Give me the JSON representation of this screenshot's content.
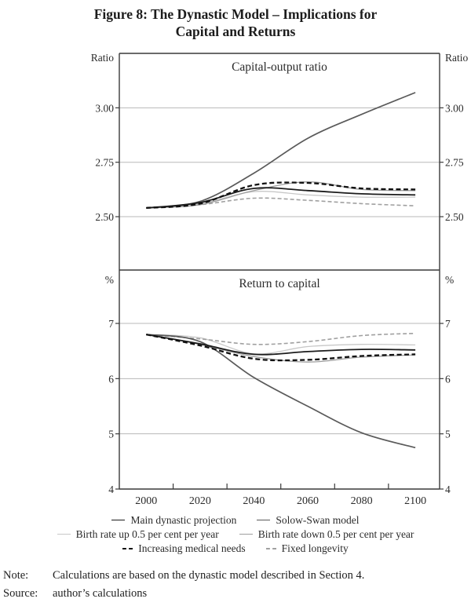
{
  "figure": {
    "title_line1": "Figure 8: The Dynastic Model – Implications for",
    "title_line2": "Capital and Returns"
  },
  "colors": {
    "frame": "#3a3a3a",
    "gridline": "#b8b8b8",
    "text": "#2b2b2b"
  },
  "chart_data": [
    {
      "type": "line",
      "panel": "top",
      "title": "Capital-output ratio",
      "unit_left": "Ratio",
      "unit_right": "Ratio",
      "x": [
        2000,
        2020,
        2040,
        2060,
        2080,
        2100
      ],
      "xlim": [
        1990,
        2109
      ],
      "ylim": [
        2.255,
        3.25
      ],
      "grid": true,
      "yticks": [
        {
          "v": 2.5,
          "label": "2.50"
        },
        {
          "v": 2.75,
          "label": "2.75"
        },
        {
          "v": 3.0,
          "label": "3.00"
        }
      ],
      "series": [
        {
          "id": "birth_up",
          "name": "Birth rate up 0.5 per cent per year",
          "color": "#c8c8c8",
          "width": 1.3,
          "dash": null,
          "values": [
            2.54,
            2.56,
            2.615,
            2.6,
            2.59,
            2.59
          ]
        },
        {
          "id": "birth_down",
          "name": "Birth rate down 0.5 per cent per year",
          "color": "#9e9e9e",
          "width": 1.3,
          "dash": null,
          "values": [
            2.54,
            2.555,
            2.62,
            2.66,
            2.625,
            2.62
          ]
        },
        {
          "id": "fixed_long",
          "name": "Fixed longevity",
          "color": "#a0a0a0",
          "width": 1.6,
          "dash": "5 3",
          "values": [
            2.54,
            2.555,
            2.585,
            2.575,
            2.56,
            2.55
          ]
        },
        {
          "id": "solow",
          "name": "Solow-Swan model",
          "color": "#5a5a5a",
          "width": 1.7,
          "dash": null,
          "values": [
            2.54,
            2.57,
            2.7,
            2.86,
            2.97,
            3.07
          ]
        },
        {
          "id": "main",
          "name": "Main dynastic projection",
          "color": "#1c1c1c",
          "width": 1.8,
          "dash": null,
          "values": [
            2.54,
            2.565,
            2.63,
            2.62,
            2.605,
            2.6
          ]
        },
        {
          "id": "inc_med",
          "name": "Increasing medical needs",
          "color": "#111111",
          "width": 2.3,
          "dash": "6 3.5",
          "values": [
            2.54,
            2.56,
            2.645,
            2.655,
            2.63,
            2.625
          ]
        }
      ]
    },
    {
      "type": "line",
      "panel": "bottom",
      "title": "Return to capital",
      "unit_left": "%",
      "unit_right": "%",
      "x": [
        2000,
        2020,
        2040,
        2060,
        2080,
        2100
      ],
      "x_tick_labels": [
        "2000",
        "2020",
        "2040",
        "2060",
        "2080",
        "2100"
      ],
      "x_minor_ticks": [
        2010,
        2030,
        2050,
        2070,
        2090
      ],
      "xlim": [
        1990,
        2109
      ],
      "ylim": [
        4,
        7.967
      ],
      "grid": true,
      "yticks": [
        {
          "v": 4,
          "label": "4"
        },
        {
          "v": 5,
          "label": "5"
        },
        {
          "v": 6,
          "label": "6"
        },
        {
          "v": 7,
          "label": "7"
        }
      ],
      "series": [
        {
          "id": "birth_up",
          "name": "Birth rate up 0.5 per cent per year",
          "color": "#c8c8c8",
          "width": 1.3,
          "dash": null,
          "values": [
            6.8,
            6.74,
            6.45,
            6.58,
            6.62,
            6.61
          ]
        },
        {
          "id": "birth_down",
          "name": "Birth rate down 0.5 per cent per year",
          "color": "#9e9e9e",
          "width": 1.3,
          "dash": null,
          "values": [
            6.8,
            6.62,
            6.4,
            6.3,
            6.39,
            6.43
          ]
        },
        {
          "id": "fixed_long",
          "name": "Fixed longevity",
          "color": "#a0a0a0",
          "width": 1.6,
          "dash": "5 3",
          "values": [
            6.8,
            6.72,
            6.62,
            6.67,
            6.78,
            6.82
          ]
        },
        {
          "id": "solow",
          "name": "Solow-Swan model",
          "color": "#5a5a5a",
          "width": 1.7,
          "dash": null,
          "values": [
            6.8,
            6.67,
            6.02,
            5.5,
            5.02,
            4.75
          ]
        },
        {
          "id": "main",
          "name": "Main dynastic projection",
          "color": "#1c1c1c",
          "width": 1.8,
          "dash": null,
          "values": [
            6.8,
            6.63,
            6.44,
            6.49,
            6.53,
            6.52
          ]
        },
        {
          "id": "inc_med",
          "name": "Increasing medical needs",
          "color": "#111111",
          "width": 2.3,
          "dash": "6 3.5",
          "values": [
            6.8,
            6.6,
            6.36,
            6.34,
            6.41,
            6.44
          ]
        }
      ]
    }
  ],
  "legend": {
    "rows": [
      [
        {
          "series": "main",
          "label": "Main dynastic projection"
        },
        {
          "series": "solow",
          "label": "Solow-Swan model"
        }
      ],
      [
        {
          "series": "birth_up",
          "label": "Birth rate up 0.5 per cent per year"
        },
        {
          "series": "birth_down",
          "label": "Birth rate down 0.5 per cent per year"
        }
      ],
      [
        {
          "series": "inc_med",
          "label": "Increasing medical needs"
        },
        {
          "series": "fixed_long",
          "label": "Fixed longevity"
        }
      ]
    ]
  },
  "notes": {
    "note_label": "Note:",
    "note_text": "Calculations are based on the dynastic model described in Section 4.",
    "source_label": "Source:",
    "source_text": "author’s calculations"
  }
}
